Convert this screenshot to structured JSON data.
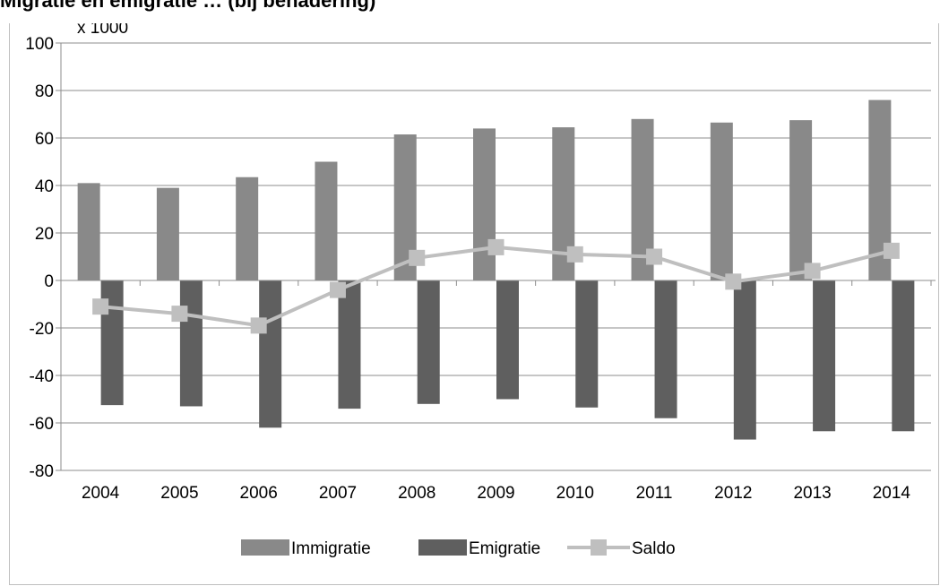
{
  "chart_data": {
    "type": "bar",
    "title": "Migratie en emigratie … (bij benadering)",
    "unit_label": "x 1000",
    "categories": [
      "2004",
      "2005",
      "2006",
      "2007",
      "2008",
      "2009",
      "2010",
      "2011",
      "2012",
      "2013",
      "2014"
    ],
    "series": [
      {
        "name": "Immigratie",
        "kind": "bar",
        "color": "#898989",
        "values": [
          41,
          39,
          43.5,
          50,
          61.5,
          64,
          64.5,
          68,
          66.5,
          67.5,
          76
        ]
      },
      {
        "name": "Emigratie",
        "kind": "bar",
        "color": "#5f5f5f",
        "values": [
          -52.5,
          -53,
          -62,
          -54,
          -52,
          -50,
          -53.5,
          -58,
          -67,
          -63.5,
          -63.5
        ]
      },
      {
        "name": "Saldo",
        "kind": "line",
        "color": "#bfbfbf",
        "values": [
          -11,
          -14,
          -19,
          -4,
          9.5,
          14,
          11,
          10,
          -0.5,
          4,
          12.5
        ]
      }
    ],
    "ylim": [
      -80,
      100
    ],
    "yticks": [
      -80,
      -60,
      -40,
      -20,
      0,
      20,
      40,
      60,
      80,
      100
    ],
    "grid": true,
    "legend_position": "bottom"
  }
}
